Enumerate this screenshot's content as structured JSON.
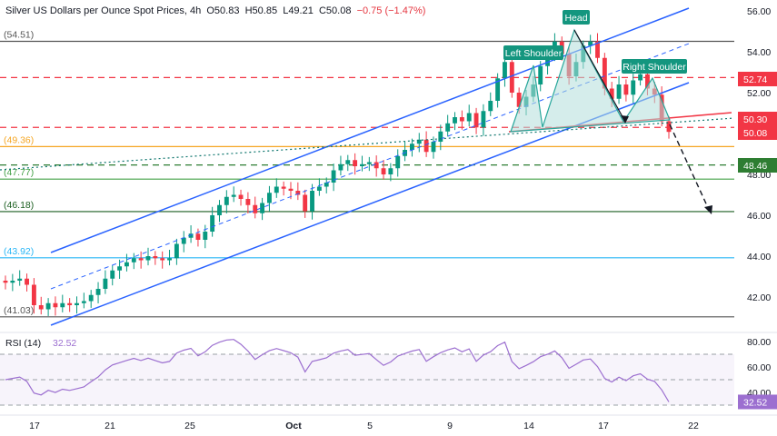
{
  "header": {
    "symbol": "Silver US Dollars per Ounce Spot Prices",
    "timeframe": "4h",
    "o_label": "O",
    "o": "50.83",
    "h_label": "H",
    "h": "50.85",
    "l_label": "L",
    "l": "49.21",
    "c_label": "C",
    "c": "50.08",
    "change": "−0.75 (−1.47%)"
  },
  "colors": {
    "up": "#089981",
    "down": "#f23645",
    "channel": "#2962ff",
    "rsi": "#9c6fd0",
    "pattern_fill": "#b2dfdb",
    "red_level": "#f23645",
    "green_level": "#43a047",
    "orange_level": "#f5a623",
    "cyan_level": "#29b6f6",
    "gray_level": "#555555"
  },
  "chart_data": {
    "type": "candlestick",
    "timeframe": "4h",
    "x_tick_labels": [
      "17",
      "21",
      "25",
      "Oct",
      "5",
      "9",
      "14",
      "17",
      "22"
    ],
    "y_axis_ticks": [
      "56.00",
      "54.00",
      "52.00",
      "50.00",
      "48.00",
      "46.00",
      "44.00",
      "42.00"
    ],
    "ylim": [
      40.6,
      56.4
    ],
    "price_badges": [
      {
        "value": "52.74",
        "color": "#f23645"
      },
      {
        "value": "50.30",
        "color": "#f23645"
      },
      {
        "value": "50.08",
        "color": "#f23645"
      },
      {
        "value": "48.46",
        "color": "#2e7d32"
      }
    ],
    "levels": [
      {
        "price": 54.51,
        "label": "(54.51)",
        "color": "#555555",
        "style": "solid"
      },
      {
        "price": 52.74,
        "label": "",
        "color": "#f23645",
        "style": "dashed"
      },
      {
        "price": 50.3,
        "label": "",
        "color": "#f23645",
        "style": "dashed"
      },
      {
        "price": 49.36,
        "label": "(49.36)",
        "color": "#f5a623",
        "style": "solid"
      },
      {
        "price": 48.46,
        "label": "",
        "color": "#2e7d32",
        "style": "dashed"
      },
      {
        "price": 47.77,
        "label": "(47.77)",
        "color": "#43a047",
        "style": "solid"
      },
      {
        "price": 46.18,
        "label": "(46.18)",
        "color": "#1b5e20",
        "style": "solid"
      },
      {
        "price": 43.92,
        "label": "(43.92)",
        "color": "#29b6f6",
        "style": "solid"
      },
      {
        "price": 41.03,
        "label": "(41.03)",
        "color": "#555555",
        "style": "solid"
      }
    ],
    "annotations": [
      "Head",
      "Left Shoulder",
      "Right Shoulder"
    ],
    "closes": [
      42.7,
      42.8,
      42.9,
      42.6,
      41.6,
      41.4,
      41.7,
      41.5,
      41.7,
      41.6,
      41.7,
      41.8,
      42.1,
      42.4,
      42.9,
      43.3,
      43.5,
      43.7,
      43.9,
      43.8,
      44.0,
      43.9,
      43.8,
      43.9,
      44.6,
      44.9,
      45.1,
      44.8,
      45.2,
      46.0,
      46.5,
      46.9,
      47.0,
      46.8,
      46.5,
      46.1,
      46.6,
      47.1,
      47.4,
      47.3,
      47.2,
      47.0,
      46.2,
      47.2,
      47.4,
      47.6,
      48.2,
      48.5,
      48.7,
      48.4,
      48.5,
      48.6,
      48.3,
      48.0,
      48.3,
      48.9,
      49.2,
      49.5,
      49.7,
      49.1,
      49.6,
      50.1,
      50.5,
      50.8,
      50.6,
      51.0,
      50.3,
      51.1,
      51.6,
      52.7,
      53.5,
      52.0,
      51.3,
      51.8,
      52.4,
      53.3,
      53.8,
      54.5,
      53.9,
      52.8,
      53.5,
      54.3,
      54.5,
      53.7,
      52.2,
      51.7,
      52.4,
      51.9,
      52.6,
      52.9,
      52.2,
      51.9,
      50.6,
      50.08
    ],
    "rsi": {
      "label": "RSI (14)",
      "value": "32.52",
      "axis_ticks": [
        "80.00",
        "60.00",
        "40.00"
      ],
      "ylim": [
        22,
        86
      ],
      "bands": [
        70,
        50,
        30
      ]
    }
  }
}
